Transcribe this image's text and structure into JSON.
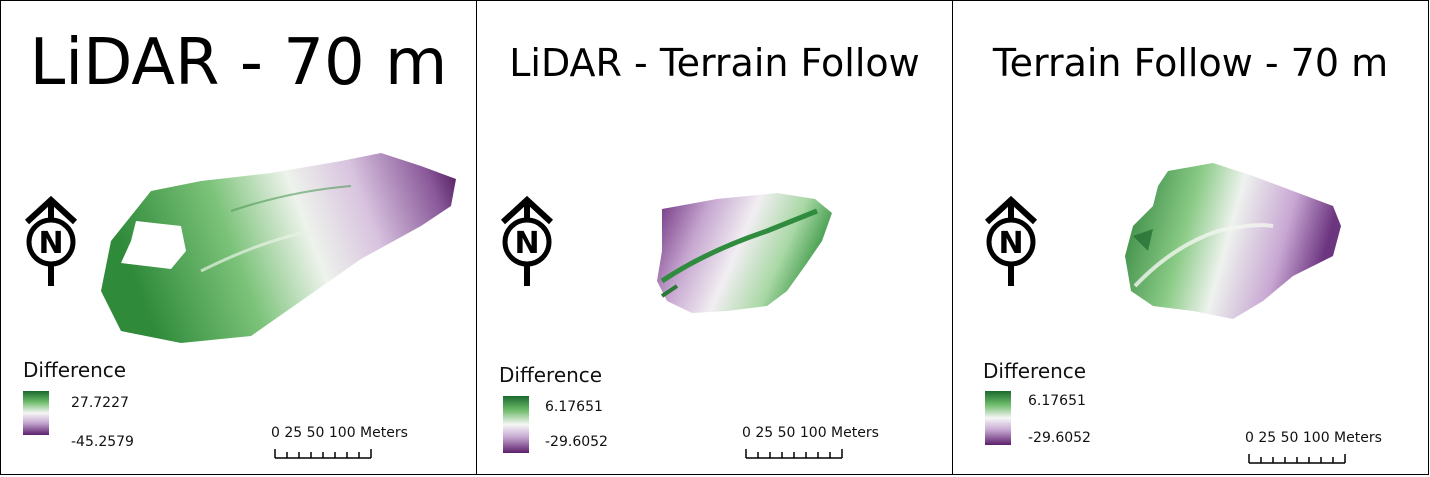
{
  "panels": [
    {
      "title": "LiDAR - 70 m",
      "legend_title": "Difference",
      "legend_max": "27.7227",
      "legend_min": "-45.2579",
      "scale_text": "0  25 50       100 Meters"
    },
    {
      "title": "LiDAR - Terrain Follow",
      "legend_title": "Difference",
      "legend_max": "6.17651",
      "legend_min": "-29.6052",
      "scale_text": "0  25 50       100 Meters"
    },
    {
      "title": "Terrain Follow - 70 m",
      "legend_title": "Difference",
      "legend_max": "6.17651",
      "legend_min": "-29.6052",
      "scale_text": "0  25 50       100 Meters"
    }
  ],
  "north_label": "N",
  "colors": {
    "high": "#1b6a2e",
    "mid": "#f6f6f6",
    "low": "#5b1f6b"
  }
}
